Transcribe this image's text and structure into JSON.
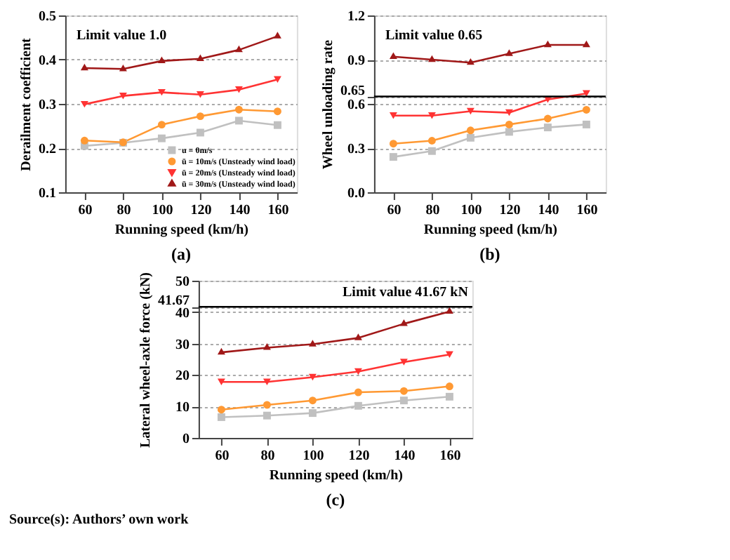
{
  "chart_data": [
    {
      "type": "line",
      "ylabel": "Derailment coefficient",
      "xlabel": "Running speed (km/h)",
      "categories": [
        "60",
        "80",
        "100",
        "120",
        "140",
        "160"
      ],
      "ylim": [
        0.1,
        0.5
      ],
      "yticks": [
        0.1,
        0.2,
        0.3,
        0.4,
        0.5
      ],
      "grid": "y",
      "legend": "bottom right",
      "annotations": [
        "Limit value 1.0",
        "(a)"
      ],
      "series": [
        {
          "name": "u = 0m/s",
          "color": "#c0c0c0",
          "marker": "square",
          "values": [
            0.205,
            0.212,
            0.222,
            0.235,
            0.262,
            0.252
          ]
        },
        {
          "name": "ū = 10m/s (Unsteady wind load)",
          "color": "#ff9933",
          "marker": "circle",
          "values": [
            0.217,
            0.213,
            0.253,
            0.272,
            0.287,
            0.283
          ]
        },
        {
          "name": "ū = 20m/s (Unsteady wind load)",
          "color": "#ff3333",
          "marker": "triangle-down",
          "values": [
            0.299,
            0.318,
            0.326,
            0.321,
            0.332,
            0.355
          ]
        },
        {
          "name": "ū = 30m/s (Unsteady wind load)",
          "color": "#a01818",
          "marker": "triangle",
          "values": [
            0.381,
            0.379,
            0.397,
            0.402,
            0.422,
            0.453
          ]
        }
      ]
    },
    {
      "type": "line",
      "ylabel": "Wheel unloading rate",
      "xlabel": "Running speed (km/h)",
      "categories": [
        "60",
        "80",
        "100",
        "120",
        "140",
        "160"
      ],
      "ylim": [
        0,
        1.2
      ],
      "yticks": [
        {
          "value": 0,
          "label": "0.0"
        },
        0.3,
        0.6,
        0.65,
        0.9,
        1.2
      ],
      "grid": "y",
      "annotations": [
        "Limit value 0.65",
        "(b)"
      ],
      "ref_lines": [
        {
          "axis": "y",
          "value": 0.65,
          "color": "#000000"
        }
      ],
      "series": [
        {
          "color": "#c0c0c0",
          "marker": "square",
          "values": [
            0.24,
            0.28,
            0.37,
            0.41,
            0.44,
            0.46
          ]
        },
        {
          "color": "#ff9933",
          "marker": "circle",
          "values": [
            0.33,
            0.35,
            0.42,
            0.46,
            0.5,
            0.56
          ]
        },
        {
          "color": "#ff3333",
          "marker": "triangle-down",
          "values": [
            0.52,
            0.52,
            0.55,
            0.54,
            0.63,
            0.67
          ]
        },
        {
          "color": "#a01818",
          "marker": "triangle",
          "values": [
            0.92,
            0.9,
            0.88,
            0.94,
            1.0,
            1.0
          ]
        }
      ]
    },
    {
      "type": "line",
      "ylabel": "Lateral wheel-axle force (kN)",
      "xlabel": "Running speed (km/h)",
      "categories": [
        "60",
        "80",
        "100",
        "120",
        "140",
        "160"
      ],
      "ylim": [
        0,
        50
      ],
      "yticks": [
        0,
        10,
        20,
        30,
        40,
        41.67,
        50
      ],
      "grid": "y",
      "annotations": [
        "Limit value  41.67 kN",
        "(c)",
        "Source(s): Authors’ own work"
      ],
      "ref_lines": [
        {
          "axis": "y",
          "value": 41.67,
          "color": "#000000"
        }
      ],
      "series": [
        {
          "color": "#c0c0c0",
          "marker": "square",
          "values": [
            6.6,
            7.1,
            7.9,
            10.2,
            11.9,
            13.1
          ]
        },
        {
          "color": "#ff9933",
          "marker": "circle",
          "values": [
            9.0,
            10.5,
            11.9,
            14.5,
            14.9,
            16.4
          ]
        },
        {
          "color": "#ff3333",
          "marker": "triangle-down",
          "values": [
            17.8,
            17.8,
            19.3,
            21.1,
            24.1,
            26.5
          ]
        },
        {
          "color": "#a01818",
          "marker": "triangle",
          "values": [
            27.2,
            28.7,
            29.8,
            31.8,
            36.3,
            40.2
          ]
        }
      ]
    }
  ]
}
